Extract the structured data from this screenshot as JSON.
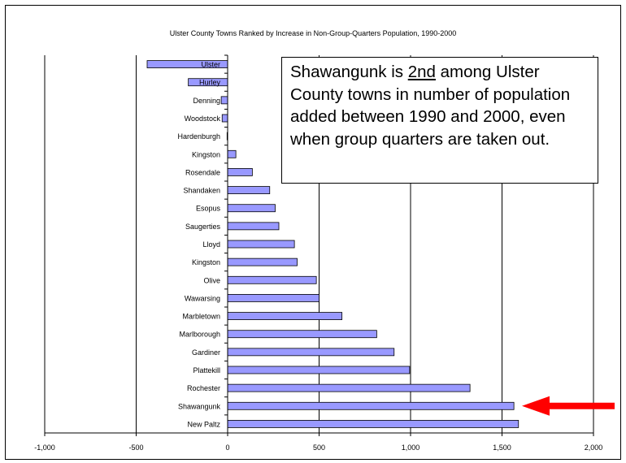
{
  "chart_data": {
    "type": "bar",
    "orientation": "horizontal",
    "title": "Ulster County Towns Ranked by Increase in Non-Group-Quarters Population, 1990-2000",
    "xlabel": "",
    "ylabel": "",
    "xlim": [
      -1000,
      2000
    ],
    "x_ticks": [
      -1000,
      -500,
      0,
      500,
      1000,
      1500,
      2000
    ],
    "x_tick_labels": [
      "-1,000",
      "-500",
      "0",
      "500",
      "1,000",
      "1,500",
      "2,000"
    ],
    "categories": [
      "Ulster",
      "Hurley",
      "Denning",
      "Woodstock",
      "Hardenburgh",
      "Kingston",
      "Rosendale",
      "Shandaken",
      "Esopus",
      "Saugerties",
      "Lloyd",
      "Kingston",
      "Olive",
      "Wawarsing",
      "Marbletown",
      "Marlborough",
      "Gardiner",
      "Plattekill",
      "Rochester",
      "Shawangunk",
      "New Paltz"
    ],
    "values": [
      -440,
      -215,
      -35,
      -30,
      -3,
      45,
      135,
      230,
      260,
      280,
      365,
      380,
      485,
      500,
      625,
      815,
      910,
      995,
      1325,
      1565,
      1590
    ],
    "bar_color": "#9999ff",
    "gridlines": "vertical",
    "legend": "none",
    "highlighted_category": "Shawangunk"
  },
  "callout": {
    "before": "Shawangunk is ",
    "emphasis": "2nd",
    "after": " among Ulster County towns in number of population added between 1990 and 2000, even when group quarters are taken out."
  },
  "colors": {
    "bar": "#9999ff",
    "arrow": "#ff0000"
  }
}
